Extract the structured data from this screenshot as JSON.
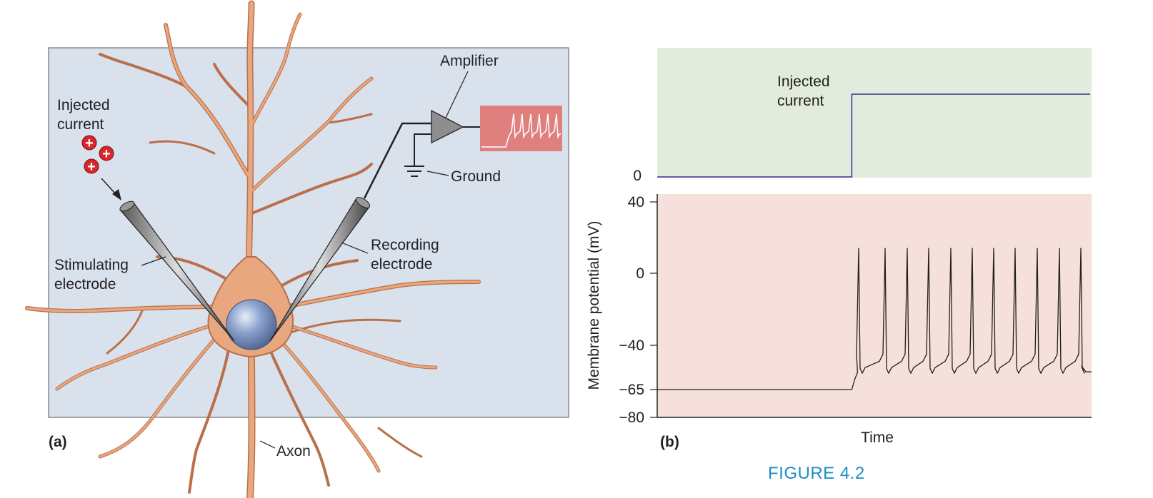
{
  "panel_a": {
    "label": "(a)",
    "labels": {
      "injected_current": [
        "Injected",
        "current"
      ],
      "amplifier": "Amplifier",
      "ground": "Ground",
      "recording_electrode": [
        "Recording",
        "electrode"
      ],
      "stimulating_electrode": [
        "Stimulating",
        "electrode"
      ],
      "axon": "Axon"
    },
    "charge_symbol": "+",
    "colors": {
      "background": "#d9e1ed",
      "neuron": "#e8a77f",
      "neuron_outline": "#b9704a",
      "nucleus": "#8aa2cc",
      "amplifier": "#8e8e8e",
      "scope_screen": "#e0807e",
      "charge": "#d9262b"
    }
  },
  "panel_b": {
    "label": "(b)",
    "current_trace": {
      "label": [
        "Injected",
        "current"
      ],
      "zero_label": "0",
      "background": "#e2ecdc",
      "line_color": "#2e3192",
      "step_onset_fraction": 0.448
    },
    "voltage_trace": {
      "background": "#f5e0db",
      "line_color": "#231f20",
      "ylabel": "Membrane potential (mV)",
      "xlabel": "Time",
      "ticks": [
        {
          "label": "40",
          "value": 40
        },
        {
          "label": "0",
          "value": 0
        },
        {
          "label": "−40",
          "value": -40
        },
        {
          "label": "−65",
          "value": -65
        },
        {
          "label": "−80",
          "value": -80
        }
      ],
      "resting_potential": -65,
      "spike_peak": 14,
      "after_hyperpolarization": -55
    }
  },
  "figure_caption": "FIGURE 4.2"
}
